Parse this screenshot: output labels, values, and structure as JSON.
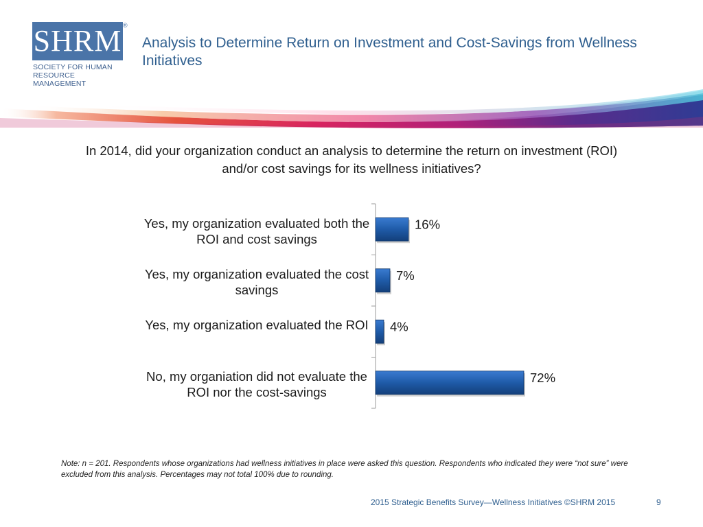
{
  "logo": {
    "brand": "SHRM",
    "reg_mark": "®",
    "line1": "Society for Human",
    "line2": "Resource Management"
  },
  "header": {
    "title": "Analysis to Determine Return on Investment and Cost-Savings from Wellness Initiatives"
  },
  "question": "In 2014, did your organization conduct an analysis to determine the return on investment (ROI) and/or cost savings for its wellness initiatives?",
  "chart_data": {
    "type": "bar",
    "orientation": "horizontal",
    "categories": [
      "Yes, my organization evaluated both the ROI and cost savings",
      "Yes, my organization evaluated the cost savings",
      "Yes, my organization evaluated the ROI",
      "No, my organiation did not evaluate the ROI nor the cost-savings"
    ],
    "values": [
      16,
      7,
      4,
      72
    ],
    "value_labels": [
      "16%",
      "7%",
      "4%",
      "72%"
    ],
    "value_unit": "%",
    "xlim": [
      0,
      100
    ],
    "title": "",
    "xlabel": "",
    "ylabel": "",
    "grid": false,
    "bar_color": "#1f5ba8"
  },
  "note": "Note: n = 201. Respondents whose organizations had wellness initiatives in place were asked this question. Respondents who indicated they were “not sure” were excluded from this analysis. Percentages may not total 100% due to rounding.",
  "footer": {
    "source": "2015 Strategic Benefits Survey—Wellness Initiatives ©SHRM 2015",
    "page": "9"
  },
  "colors": {
    "title": "#2f5f8f",
    "logo_bg": "#4a74a8",
    "bar": "#1f5ba8"
  }
}
